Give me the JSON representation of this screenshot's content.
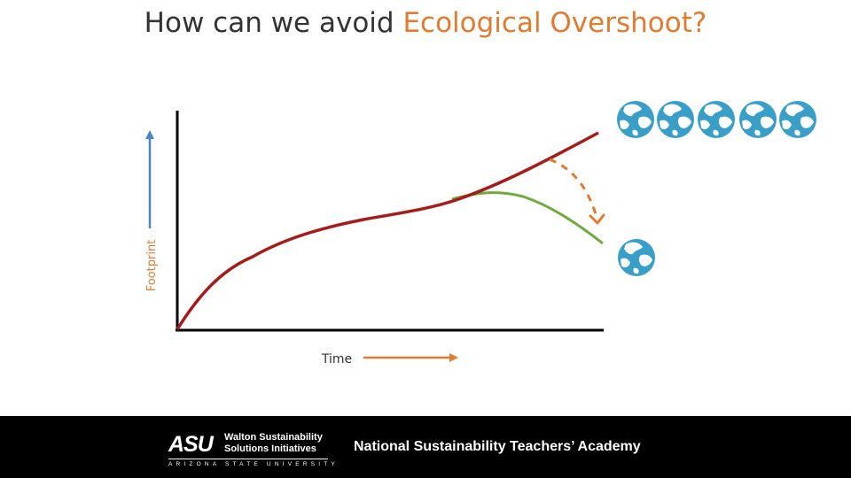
{
  "slide": {
    "title_part1": "How can we avoid ",
    "title_highlight": "Ecological Overshoot?",
    "title_highlight_color": "#e07b30"
  },
  "diagram": {
    "y_axis_label": "Footprint",
    "x_axis_label": "Time",
    "curves": [
      {
        "name": "current footprint",
        "color": "#a51c1c"
      },
      {
        "name": "reduced footprint",
        "color": "#6faa3c"
      }
    ],
    "globes_top_count": 5,
    "globes_bottom_count": 1,
    "globe_color": "#3a9fc8",
    "axis_arrow_colors": {
      "y": "#4a86c8",
      "x": "#e07b30"
    },
    "transition_arrow_color": "#e07b30"
  },
  "footer": {
    "logo_mark": "ASU",
    "logo_org_line1": "Walton Sustainability",
    "logo_org_line2": "Solutions Initiatives",
    "logo_university": "ARIZONA STATE UNIVERSITY",
    "text": "National Sustainability Teachers’ Academy"
  }
}
